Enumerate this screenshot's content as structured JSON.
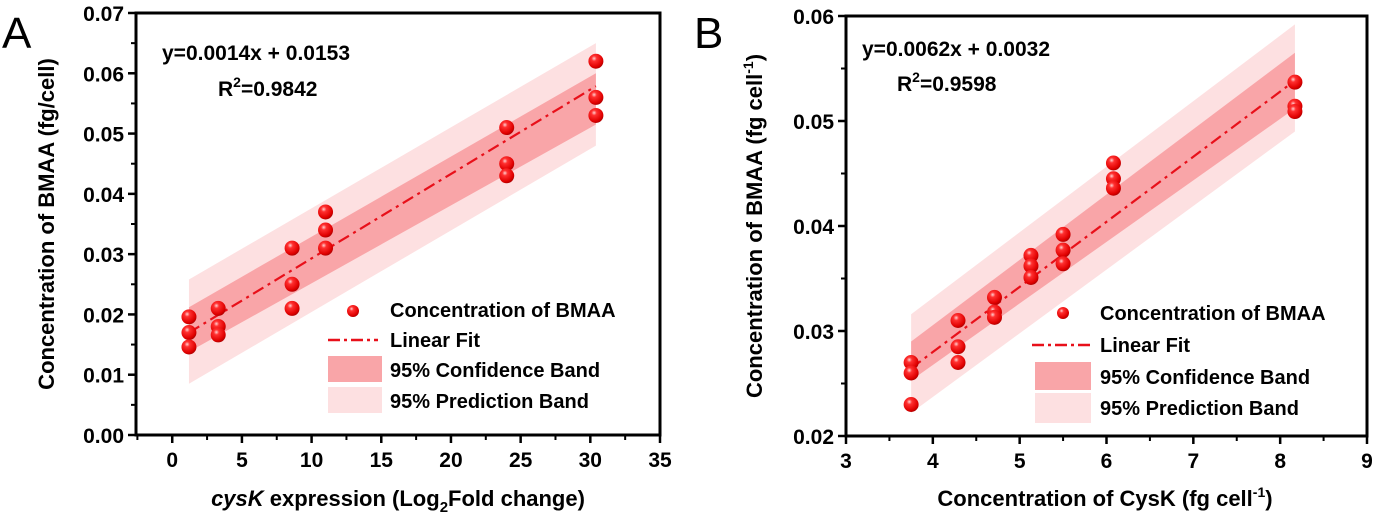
{
  "colors": {
    "point": "#ee1111",
    "fit_line": "#e8101a",
    "confidence_band": "#f9a5a8",
    "prediction_band": "#fde0e1",
    "axis": "#000000"
  },
  "chart_data": [
    {
      "panel_label": "A",
      "type": "scatter",
      "title": "",
      "xlabel_italic": "cysK",
      "xlabel_rest": " expression (Log",
      "xlabel_sub": "2",
      "xlabel_end": "Fold change)",
      "ylabel": "Concentration of BMAA (fg/cell)",
      "xlim": [
        -2.6,
        35
      ],
      "ylim": [
        0,
        0.07
      ],
      "xticks": [
        0,
        5,
        10,
        15,
        20,
        25,
        30,
        35
      ],
      "xtick_labels": [
        "0",
        "5",
        "10",
        "15",
        "20",
        "25",
        "30",
        "35"
      ],
      "yticks": [
        0,
        0.01,
        0.02,
        0.03,
        0.04,
        0.05,
        0.06,
        0.07
      ],
      "ytick_labels": [
        "0.00",
        "0.01",
        "0.02",
        "0.03",
        "0.04",
        "0.05",
        "0.06",
        "0.07"
      ],
      "equation": "y=0.0014x + 0.0153",
      "r2_prefix": "R",
      "r2_sup": "2",
      "r2_value": "=0.9842",
      "fit": {
        "slope": 0.0014,
        "intercept": 0.0153,
        "x_range": [
          1.2,
          30.4
        ]
      },
      "confidence_band": {
        "x": [
          1.2,
          30.4
        ],
        "lower": [
          0.0138,
          0.0515
        ],
        "upper": [
          0.0212,
          0.06
        ]
      },
      "prediction_band": {
        "x": [
          1.2,
          30.4
        ],
        "lower": [
          0.0085,
          0.048
        ],
        "upper": [
          0.0258,
          0.065
        ]
      },
      "series": [
        {
          "name": "Concentration of BMAA",
          "x": [
            1.2,
            1.2,
            1.2,
            3.3,
            3.3,
            3.3,
            8.6,
            8.6,
            8.6,
            11.0,
            11.0,
            11.0,
            24.0,
            24.0,
            24.0,
            30.4,
            30.4,
            30.4
          ],
          "y": [
            0.0196,
            0.017,
            0.0146,
            0.021,
            0.018,
            0.0166,
            0.031,
            0.025,
            0.021,
            0.037,
            0.034,
            0.031,
            0.051,
            0.045,
            0.043,
            0.062,
            0.056,
            0.053
          ]
        }
      ],
      "legend": {
        "placement": "bottom-right",
        "entries": [
          "Concentration of BMAA",
          "Linear Fit",
          "95% Confidence Band",
          "95% Prediction Band"
        ]
      }
    },
    {
      "panel_label": "B",
      "type": "scatter",
      "title": "",
      "xlabel": "Concentration of CysK (fg cell",
      "xlabel_sup": "-1",
      "xlabel_end": ")",
      "ylabel": "Concentration of BMAA (fg cell",
      "ylabel_sup": "-1",
      "ylabel_end": ")",
      "xlim": [
        3,
        9
      ],
      "ylim": [
        0.02,
        0.06
      ],
      "xticks": [
        3,
        4,
        5,
        6,
        7,
        8,
        9
      ],
      "xtick_labels": [
        "3",
        "4",
        "5",
        "6",
        "7",
        "8",
        "9"
      ],
      "yticks": [
        0.02,
        0.03,
        0.04,
        0.05,
        0.06
      ],
      "ytick_labels": [
        "0.02",
        "0.03",
        "0.04",
        "0.05",
        "0.06"
      ],
      "equation": "y=0.0062x + 0.0032",
      "r2_prefix": "R",
      "r2_sup": "2",
      "r2_value": "=0.9598",
      "fit": {
        "slope": 0.0062,
        "intercept": 0.0032,
        "x_range": [
          3.75,
          8.17
        ]
      },
      "confidence_band": {
        "x": [
          3.75,
          8.17
        ],
        "lower": [
          0.0253,
          0.0512
        ],
        "upper": [
          0.029,
          0.0565
        ]
      },
      "prediction_band": {
        "x": [
          3.75,
          8.17
        ],
        "lower": [
          0.0222,
          0.049
        ],
        "upper": [
          0.0316,
          0.0592
        ]
      },
      "series": [
        {
          "name": "Concentration of BMAA",
          "x": [
            3.75,
            3.75,
            3.75,
            4.29,
            4.29,
            4.29,
            4.71,
            4.71,
            4.71,
            5.13,
            5.13,
            5.13,
            5.5,
            5.5,
            5.5,
            6.08,
            6.08,
            6.08,
            8.17,
            8.17,
            8.17
          ],
          "y": [
            0.027,
            0.026,
            0.023,
            0.031,
            0.0285,
            0.027,
            0.0332,
            0.0318,
            0.0313,
            0.0372,
            0.0362,
            0.0351,
            0.0392,
            0.0377,
            0.0364,
            0.046,
            0.0445,
            0.0436,
            0.0537,
            0.0514,
            0.0509
          ]
        }
      ],
      "legend": {
        "placement": "bottom-right",
        "entries": [
          "Concentration of BMAA",
          "Linear Fit",
          "95% Confidence Band",
          "95% Prediction Band"
        ]
      }
    }
  ]
}
